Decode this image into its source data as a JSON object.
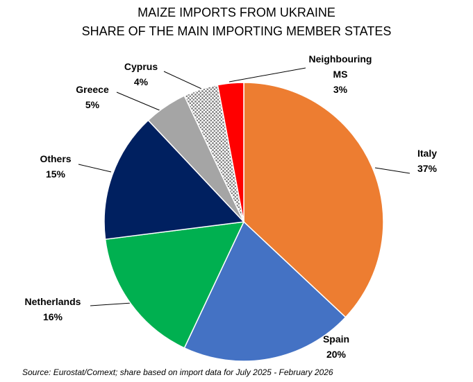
{
  "chart_data": {
    "type": "pie",
    "title": "MAIZE IMPORTS FROM UKRAINE",
    "subtitle": "SHARE OF THE MAIN IMPORTING MEMBER STATES",
    "categories": [
      "Italy",
      "Spain",
      "Netherlands",
      "Others",
      "Greece",
      "Cyprus",
      "Neighbouring MS"
    ],
    "values": [
      37,
      20,
      16,
      15,
      5,
      4,
      3
    ],
    "value_labels": [
      "37%",
      "20%",
      "16%",
      "15%",
      "5%",
      "4%",
      "3%"
    ],
    "colors": [
      "#ed7d31",
      "#4472c4",
      "#00b050",
      "#002060",
      "#a5a5a5",
      "#808080",
      "#ff0000"
    ],
    "dotted": [
      false,
      false,
      false,
      false,
      false,
      true,
      false
    ],
    "source": "Source: Eurostat/Comext; share based on import data for July 2025 - February 2026"
  }
}
